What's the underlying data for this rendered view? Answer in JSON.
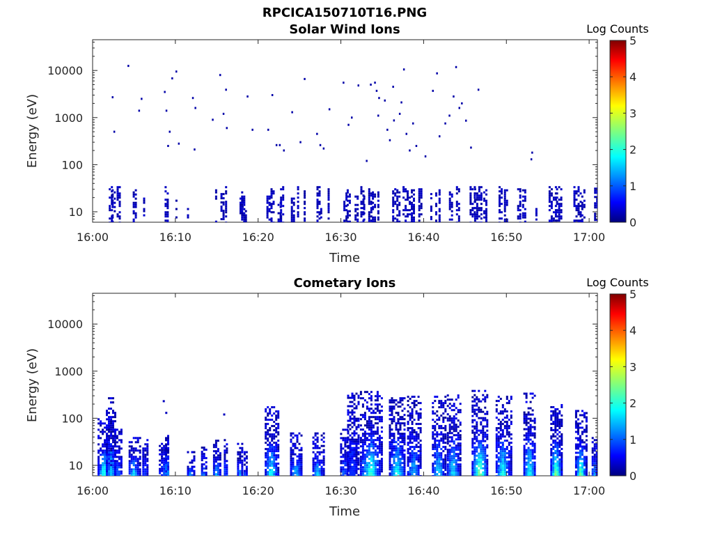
{
  "figure_title": "RPCICA150710T16.PNG",
  "chart_data": [
    {
      "type": "heatmap",
      "title": "Solar Wind Ions",
      "xlabel": "Time",
      "ylabel": "Energy (eV)",
      "x_ticks": [
        "16:00",
        "16:10",
        "16:20",
        "16:30",
        "16:40",
        "16:50",
        "17:00"
      ],
      "x_range_min": [
        0,
        61
      ],
      "y_ticks": [
        "10",
        "100",
        "1000",
        "10000"
      ],
      "y_scale": "log",
      "y_range_ev": [
        6,
        45000
      ],
      "colorbar": {
        "label": "Log Counts",
        "range": [
          0,
          5
        ],
        "ticks": [
          "0",
          "1",
          "2",
          "3",
          "4",
          "5"
        ],
        "colormap": "jet"
      },
      "low_energy_bursts": [
        [
          2.1,
          10,
          35,
          0.3
        ],
        [
          2.5,
          12,
          30,
          0.4
        ],
        [
          3.1,
          10,
          35,
          0.4
        ],
        [
          5.0,
          12,
          30,
          0.3
        ],
        [
          6.2,
          15,
          20,
          0.2
        ],
        [
          8.9,
          8,
          35,
          0.4
        ],
        [
          10.1,
          15,
          20,
          0.2
        ],
        [
          11.5,
          7,
          12,
          0.2
        ],
        [
          14.9,
          25,
          30,
          0.2
        ],
        [
          15.6,
          18,
          25,
          0.3
        ],
        [
          16.1,
          28,
          35,
          0.2
        ],
        [
          17.9,
          10,
          20,
          0.3
        ],
        [
          18.1,
          12,
          30,
          0.3
        ],
        [
          18.5,
          6,
          12,
          0.2
        ],
        [
          21.2,
          10,
          30,
          0.4
        ],
        [
          21.7,
          10,
          35,
          0.4
        ],
        [
          22.5,
          12,
          20,
          0.3
        ],
        [
          22.8,
          10,
          35,
          0.3
        ],
        [
          24.2,
          10,
          20,
          0.5
        ],
        [
          24.8,
          10,
          35,
          0.2
        ],
        [
          25.6,
          30,
          35,
          0.2
        ],
        [
          27.2,
          12,
          35,
          0.3
        ],
        [
          27.6,
          7,
          12,
          0.2
        ],
        [
          28.5,
          30,
          35,
          0.2
        ],
        [
          30.5,
          12,
          35,
          0.4
        ],
        [
          30.9,
          12,
          30,
          0.4
        ],
        [
          31.8,
          10,
          30,
          0.3
        ],
        [
          32.5,
          25,
          35,
          0.3
        ],
        [
          32.8,
          20,
          30,
          0.2
        ],
        [
          33.5,
          8,
          35,
          0.4
        ],
        [
          33.9,
          8,
          30,
          0.3
        ],
        [
          34.5,
          10,
          30,
          0.2
        ],
        [
          36.4,
          8,
          35,
          0.4
        ],
        [
          36.9,
          6,
          30,
          0.4
        ],
        [
          37.6,
          25,
          35,
          0.3
        ],
        [
          38.1,
          10,
          35,
          0.3
        ],
        [
          38.6,
          12,
          30,
          0.3
        ],
        [
          39.5,
          20,
          35,
          0.3
        ],
        [
          40.9,
          12,
          25,
          0.2
        ],
        [
          41.5,
          25,
          35,
          0.2
        ],
        [
          41.9,
          20,
          30,
          0.2
        ],
        [
          43.2,
          12,
          30,
          0.3
        ],
        [
          44.1,
          10,
          35,
          0.4
        ],
        [
          45.9,
          12,
          35,
          0.7
        ],
        [
          46.5,
          12,
          35,
          0.8
        ],
        [
          47.4,
          20,
          30,
          0.4
        ],
        [
          49.3,
          12,
          35,
          0.5
        ],
        [
          49.9,
          12,
          30,
          0.4
        ],
        [
          51.5,
          10,
          35,
          0.4
        ],
        [
          52.1,
          15,
          30,
          0.4
        ],
        [
          53.6,
          8,
          12,
          0.2
        ],
        [
          55.5,
          12,
          35,
          0.8
        ],
        [
          56.3,
          15,
          35,
          0.6
        ],
        [
          58.5,
          10,
          35,
          0.8
        ],
        [
          59.3,
          10,
          30,
          0.5
        ],
        [
          60.8,
          15,
          40,
          0.4
        ]
      ],
      "scattered_dots": [
        [
          2.4,
          2700
        ],
        [
          2.6,
          500
        ],
        [
          4.3,
          12500
        ],
        [
          5.6,
          1400
        ],
        [
          5.9,
          2500
        ],
        [
          8.7,
          3500
        ],
        [
          8.9,
          1400
        ],
        [
          9.1,
          250
        ],
        [
          9.3,
          500
        ],
        [
          9.6,
          6800
        ],
        [
          10.1,
          9500
        ],
        [
          10.4,
          280
        ],
        [
          12.1,
          2600
        ],
        [
          12.4,
          1600
        ],
        [
          12.3,
          210
        ],
        [
          14.5,
          900
        ],
        [
          15.4,
          8000
        ],
        [
          15.8,
          1200
        ],
        [
          16.1,
          3900
        ],
        [
          16.2,
          600
        ],
        [
          18.7,
          2800
        ],
        [
          19.3,
          550
        ],
        [
          21.2,
          550
        ],
        [
          21.7,
          3000
        ],
        [
          22.2,
          260
        ],
        [
          22.6,
          260
        ],
        [
          23.1,
          200
        ],
        [
          24.1,
          1300
        ],
        [
          25.1,
          300
        ],
        [
          25.6,
          6600
        ],
        [
          27.1,
          450
        ],
        [
          27.5,
          260
        ],
        [
          27.9,
          220
        ],
        [
          28.6,
          1500
        ],
        [
          30.3,
          5500
        ],
        [
          30.9,
          700
        ],
        [
          31.3,
          1000
        ],
        [
          32.1,
          4800
        ],
        [
          33.1,
          120
        ],
        [
          33.6,
          5000
        ],
        [
          34.1,
          5500
        ],
        [
          34.3,
          3700
        ],
        [
          34.6,
          2600
        ],
        [
          34.5,
          1100
        ],
        [
          35.3,
          2300
        ],
        [
          35.6,
          550
        ],
        [
          35.9,
          330
        ],
        [
          36.3,
          4500
        ],
        [
          36.4,
          870
        ],
        [
          37.1,
          1200
        ],
        [
          37.3,
          2100
        ],
        [
          37.6,
          10500
        ],
        [
          37.9,
          450
        ],
        [
          38.3,
          200
        ],
        [
          38.7,
          750
        ],
        [
          39.1,
          250
        ],
        [
          40.2,
          150
        ],
        [
          41.1,
          3700
        ],
        [
          41.6,
          8700
        ],
        [
          41.9,
          400
        ],
        [
          42.6,
          750
        ],
        [
          43.1,
          1100
        ],
        [
          43.6,
          2800
        ],
        [
          43.9,
          11800
        ],
        [
          44.3,
          1600
        ],
        [
          44.6,
          2000
        ],
        [
          45.1,
          860
        ],
        [
          45.7,
          230
        ],
        [
          46.6,
          3900
        ],
        [
          53.1,
          180
        ],
        [
          53.0,
          130
        ]
      ]
    },
    {
      "type": "heatmap",
      "title": "Cometary Ions",
      "xlabel": "Time",
      "ylabel": "Energy (eV)",
      "x_ticks": [
        "16:00",
        "16:10",
        "16:20",
        "16:30",
        "16:40",
        "16:50",
        "17:00"
      ],
      "x_range_min": [
        0,
        61
      ],
      "y_ticks": [
        "10",
        "100",
        "1000",
        "10000"
      ],
      "y_scale": "log",
      "y_range_ev": [
        6,
        45000
      ],
      "colorbar": {
        "label": "Log Counts",
        "range": [
          0,
          5
        ],
        "ticks": [
          "0",
          "1",
          "2",
          "3",
          "4",
          "5"
        ],
        "colormap": "jet"
      },
      "bursts": [
        [
          1.4,
          1.6,
          8,
          100,
          2.0
        ],
        [
          2.2,
          1.2,
          10,
          280,
          1.6
        ],
        [
          3.1,
          1.0,
          10,
          60,
          1.0
        ],
        [
          5.0,
          1.3,
          8,
          40,
          1.8
        ],
        [
          6.3,
          0.6,
          25,
          40,
          0.8
        ],
        [
          8.6,
          1.2,
          6,
          30,
          1.0
        ],
        [
          9.0,
          0.5,
          25,
          60,
          2.0
        ],
        [
          11.8,
          0.8,
          6,
          20,
          1.3
        ],
        [
          13.4,
          0.6,
          6,
          25,
          1.2
        ],
        [
          15.0,
          0.9,
          6,
          35,
          1.5
        ],
        [
          16.1,
          0.5,
          25,
          40,
          1.2
        ],
        [
          17.8,
          0.7,
          6,
          30,
          1.5
        ],
        [
          18.5,
          0.5,
          6,
          20,
          1.0
        ],
        [
          21.6,
          1.6,
          8,
          180,
          1.9
        ],
        [
          24.6,
          1.5,
          8,
          50,
          1.6
        ],
        [
          27.2,
          1.3,
          8,
          50,
          1.7
        ],
        [
          30.4,
          1.0,
          8,
          60,
          1.1
        ],
        [
          31.4,
          1.3,
          20,
          350,
          0.8
        ],
        [
          33.6,
          2.6,
          6,
          380,
          2.1
        ],
        [
          36.8,
          2.0,
          6,
          280,
          2.0
        ],
        [
          38.8,
          1.6,
          8,
          300,
          1.4
        ],
        [
          41.8,
          1.6,
          10,
          300,
          1.6
        ],
        [
          43.6,
          1.6,
          10,
          320,
          1.7
        ],
        [
          46.8,
          2.0,
          8,
          400,
          2.5
        ],
        [
          49.6,
          1.8,
          8,
          300,
          2.0
        ],
        [
          52.8,
          1.5,
          8,
          350,
          2.0
        ],
        [
          56.0,
          1.4,
          8,
          200,
          2.6
        ],
        [
          59.0,
          1.4,
          8,
          150,
          2.4
        ],
        [
          60.6,
          0.6,
          25,
          40,
          1.5
        ]
      ],
      "isolated_points": [
        [
          8.6,
          230
        ],
        [
          8.9,
          130
        ],
        [
          15.9,
          120
        ]
      ]
    }
  ]
}
